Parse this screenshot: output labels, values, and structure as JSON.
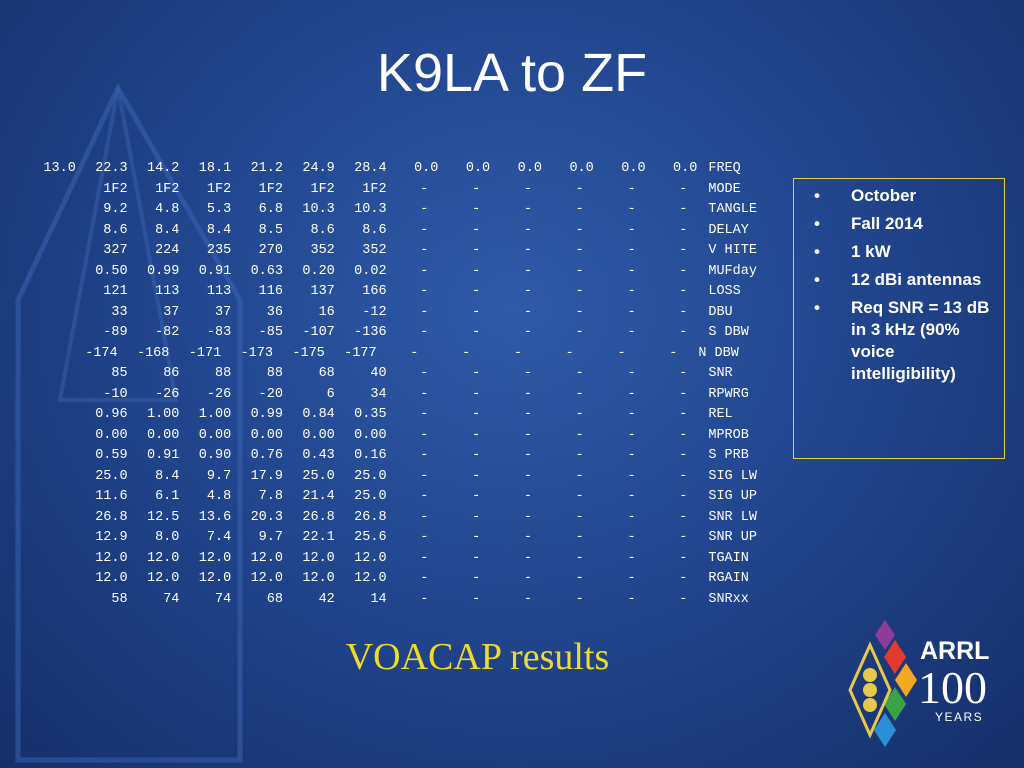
{
  "header": {
    "title": "K9LA to ZF"
  },
  "table": {
    "rows": [
      {
        "values": [
          "13.0",
          "22.3",
          "14.2",
          "18.1",
          "21.2",
          "24.9",
          "28.4",
          "0.0",
          "0.0",
          "0.0",
          "0.0",
          "0.0",
          "0.0"
        ],
        "label": "FREQ"
      },
      {
        "values": [
          "1F2",
          "1F2",
          "1F2",
          "1F2",
          "1F2",
          "1F2",
          "-",
          "-",
          "-",
          "-",
          "-",
          "-"
        ],
        "label": "MODE"
      },
      {
        "values": [
          "9.2",
          "4.8",
          "5.3",
          "6.8",
          "10.3",
          "10.3",
          "-",
          "-",
          "-",
          "-",
          "-",
          "-"
        ],
        "label": "TANGLE"
      },
      {
        "values": [
          "8.6",
          "8.4",
          "8.4",
          "8.5",
          "8.6",
          "8.6",
          "-",
          "-",
          "-",
          "-",
          "-",
          "-"
        ],
        "label": "DELAY"
      },
      {
        "values": [
          "327",
          "224",
          "235",
          "270",
          "352",
          "352",
          "-",
          "-",
          "-",
          "-",
          "-",
          "-"
        ],
        "label": "V HITE"
      },
      {
        "values": [
          "0.50",
          "0.99",
          "0.91",
          "0.63",
          "0.20",
          "0.02",
          "-",
          "-",
          "-",
          "-",
          "-",
          "-"
        ],
        "label": "MUFday"
      },
      {
        "values": [
          "121",
          "113",
          "113",
          "116",
          "137",
          "166",
          "-",
          "-",
          "-",
          "-",
          "-",
          "-"
        ],
        "label": "LOSS"
      },
      {
        "values": [
          "33",
          "37",
          "37",
          "36",
          "16",
          "-12",
          "-",
          "-",
          "-",
          "-",
          "-",
          "-"
        ],
        "label": "DBU"
      },
      {
        "values": [
          "-89",
          "-82",
          "-83",
          "-85",
          "-107",
          "-136",
          "-",
          "-",
          "-",
          "-",
          "-",
          "-"
        ],
        "label": "S DBW"
      },
      {
        "values": [
          "-174",
          "-168",
          "-171",
          "-173",
          "-175",
          "-177",
          "-",
          "-",
          "-",
          "-",
          "-",
          "-"
        ],
        "label": "N DBW"
      },
      {
        "values": [
          "85",
          "86",
          "88",
          "88",
          "68",
          "40",
          "-",
          "-",
          "-",
          "-",
          "-",
          "-"
        ],
        "label": "SNR"
      },
      {
        "values": [
          "-10",
          "-26",
          "-26",
          "-20",
          "6",
          "34",
          "-",
          "-",
          "-",
          "-",
          "-",
          "-"
        ],
        "label": "RPWRG"
      },
      {
        "values": [
          "0.96",
          "1.00",
          "1.00",
          "0.99",
          "0.84",
          "0.35",
          "-",
          "-",
          "-",
          "-",
          "-",
          "-"
        ],
        "label": "REL"
      },
      {
        "values": [
          "0.00",
          "0.00",
          "0.00",
          "0.00",
          "0.00",
          "0.00",
          "-",
          "-",
          "-",
          "-",
          "-",
          "-"
        ],
        "label": "MPROB"
      },
      {
        "values": [
          "0.59",
          "0.91",
          "0.90",
          "0.76",
          "0.43",
          "0.16",
          "-",
          "-",
          "-",
          "-",
          "-",
          "-"
        ],
        "label": "S PRB"
      },
      {
        "values": [
          "25.0",
          "8.4",
          "9.7",
          "17.9",
          "25.0",
          "25.0",
          "-",
          "-",
          "-",
          "-",
          "-",
          "-"
        ],
        "label": "SIG LW"
      },
      {
        "values": [
          "11.6",
          "6.1",
          "4.8",
          "7.8",
          "21.4",
          "25.0",
          "-",
          "-",
          "-",
          "-",
          "-",
          "-"
        ],
        "label": "SIG UP"
      },
      {
        "values": [
          "26.8",
          "12.5",
          "13.6",
          "20.3",
          "26.8",
          "26.8",
          "-",
          "-",
          "-",
          "-",
          "-",
          "-"
        ],
        "label": "SNR LW"
      },
      {
        "values": [
          "12.9",
          "8.0",
          "7.4",
          "9.7",
          "22.1",
          "25.6",
          "-",
          "-",
          "-",
          "-",
          "-",
          "-"
        ],
        "label": "SNR UP"
      },
      {
        "values": [
          "12.0",
          "12.0",
          "12.0",
          "12.0",
          "12.0",
          "12.0",
          "-",
          "-",
          "-",
          "-",
          "-",
          "-"
        ],
        "label": "TGAIN"
      },
      {
        "values": [
          "12.0",
          "12.0",
          "12.0",
          "12.0",
          "12.0",
          "12.0",
          "-",
          "-",
          "-",
          "-",
          "-",
          "-"
        ],
        "label": "RGAIN"
      },
      {
        "values": [
          "58",
          "74",
          "74",
          "68",
          "42",
          "14",
          "-",
          "-",
          "-",
          "-",
          "-",
          "-"
        ],
        "label": "SNRxx"
      }
    ]
  },
  "notes": {
    "bullets": [
      "October",
      "Fall 2014",
      "1 kW",
      "12 dBi antennas",
      "Req SNR = 13 dB in 3 kHz (90% voice intelligibility)"
    ]
  },
  "caption": "VOACAP results",
  "logo": {
    "name": "ARRL",
    "number": "100",
    "years": "YEARS"
  }
}
